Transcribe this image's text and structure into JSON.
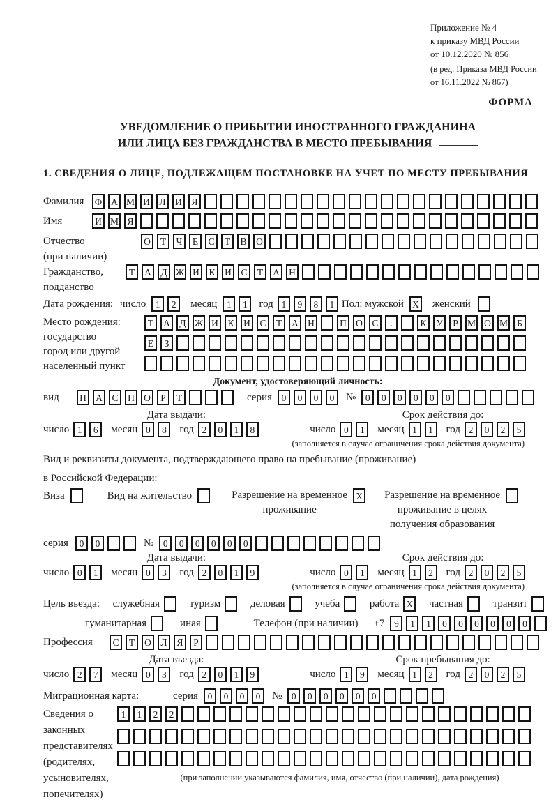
{
  "doc_ref": {
    "lines": [
      "Приложение № 4",
      "к приказу МВД России",
      "от 10.12.2020 № 856"
    ],
    "amendment": [
      "(в ред. Приказа МВД России",
      "от 16.11.2022 № 867)"
    ]
  },
  "form_label": "ФОРМА",
  "title": {
    "line1": "УВЕДОМЛЕНИЕ О ПРИБЫТИИ ИНОСТРАННОГО ГРАЖДАНИНА",
    "line2": "ИЛИ ЛИЦА БЕЗ ГРАЖДАНСТВА В МЕСТО ПРЕБЫВАНИЯ"
  },
  "section1_heading": "1. СВЕДЕНИЯ О ЛИЦЕ, ПОДЛЕЖАЩЕМ ПОСТАНОВКЕ НА УЧЕТ ПО МЕСТУ ПРЕБЫВАНИЯ",
  "date_labels": {
    "day": "число",
    "month": "месяц",
    "year": "год"
  },
  "fields": {
    "surname": {
      "label": "Фамилия",
      "value": "ФАМИЛИЯ",
      "cells": 28
    },
    "given_name": {
      "label": "Имя",
      "value": "ИМЯ",
      "cells": 28
    },
    "patronymic": {
      "label": "Отчество",
      "label_note": "(при наличии)",
      "value": "ОТЧЕСТВО",
      "cells": 25
    },
    "citizenship": {
      "label": "Гражданство,",
      "label2": "подданство",
      "value": "ТАДЖИКИСТАН",
      "cells": 26
    },
    "birth_date": {
      "label": "Дата рождения:",
      "day": {
        "value": "12",
        "cells": 2
      },
      "month": {
        "value": "11",
        "cells": 2
      },
      "year": {
        "value": "1981",
        "cells": 4
      },
      "sex_label": "Пол: мужской",
      "male": {
        "value": "X",
        "cells": 1
      },
      "female_label": "женский",
      "female": {
        "value": "",
        "cells": 1
      }
    },
    "birth_place": {
      "label": "Место рождения:",
      "sub1": "государство",
      "sub2": "город или другой",
      "sub3": "населенный пункт",
      "row1": {
        "value": "ТАДЖИКИСТАН ПОС. КУРМОМБ",
        "cells": 24
      },
      "row2": {
        "value": "ЕЗ",
        "cells": 24
      },
      "row3": {
        "value": "",
        "cells": 24
      }
    }
  },
  "identity_doc": {
    "heading": "Документ, удостоверяющий личность:",
    "type_label": "вид",
    "type": {
      "value": "ПАСПОРТ",
      "cells": 10
    },
    "series_label": "серия",
    "series": {
      "value": "0000",
      "cells": 4
    },
    "number_label": "№",
    "number": {
      "value": "000000",
      "cells": 11
    },
    "issue": {
      "heading": "Дата выдачи:",
      "day": {
        "value": "16",
        "cells": 2
      },
      "month": {
        "value": "08",
        "cells": 2
      },
      "year": {
        "value": "2018",
        "cells": 4
      }
    },
    "valid": {
      "heading": "Срок действия до:",
      "day": {
        "value": "01",
        "cells": 2
      },
      "month": {
        "value": "11",
        "cells": 2
      },
      "year": {
        "value": "2025",
        "cells": 4
      }
    },
    "note": "(заполняется в случае ограничения срока действия документа)"
  },
  "residence_doc": {
    "line1": "Вид и реквизиты документа, подтверждающего право на пребывание (проживание)",
    "line2": "в Российской Федерации:",
    "visa_label": "Виза",
    "visa": {
      "value": "",
      "cells": 1
    },
    "permit_label": "Вид на жительство",
    "permit": {
      "value": "",
      "cells": 1
    },
    "temp_label1": "Разрешение на временное",
    "temp_label2": "проживание",
    "temp": {
      "value": "X",
      "cells": 1
    },
    "edu_label1": "Разрешение на временное",
    "edu_label2": "проживание в целях",
    "edu_label3": "получения образования",
    "edu": {
      "value": "",
      "cells": 1
    },
    "series_label": "серия",
    "series": {
      "value": "00",
      "cells": 4
    },
    "number_label": "№",
    "number": {
      "value": "000000",
      "cells": 14
    },
    "issue": {
      "heading": "Дата выдачи:",
      "day": {
        "value": "01",
        "cells": 2
      },
      "month": {
        "value": "03",
        "cells": 2
      },
      "year": {
        "value": "2019",
        "cells": 4
      }
    },
    "valid": {
      "heading": "Срок действия до:",
      "day": {
        "value": "01",
        "cells": 2
      },
      "month": {
        "value": "12",
        "cells": 2
      },
      "year": {
        "value": "2025",
        "cells": 4
      }
    },
    "note": "(заполняется в случае ограничения срока действия документа)"
  },
  "purpose": {
    "intro": "Цель въезда:",
    "options1": [
      {
        "label": "служебная",
        "value": ""
      },
      {
        "label": "туризм",
        "value": ""
      },
      {
        "label": "деловая",
        "value": ""
      },
      {
        "label": "учеба",
        "value": ""
      },
      {
        "label": "работа",
        "value": "X"
      },
      {
        "label": "частная",
        "value": ""
      },
      {
        "label": "транзит",
        "value": ""
      }
    ],
    "options2": [
      {
        "label": "гуманитарная",
        "value": ""
      },
      {
        "label": "иная",
        "value": ""
      }
    ]
  },
  "phone": {
    "label": "Телефон (при наличии)",
    "prefix": "+7",
    "digits": {
      "value": "911000000",
      "cells": 10
    }
  },
  "profession": {
    "label": "Профессия",
    "field": {
      "value": "СТОЛЯР",
      "cells": 27
    }
  },
  "entry": {
    "issue": {
      "heading": "Дата въезда:",
      "day": {
        "value": "27",
        "cells": 2
      },
      "month": {
        "value": "03",
        "cells": 2
      },
      "year": {
        "value": "2019",
        "cells": 4
      }
    },
    "valid": {
      "heading": "Срок пребывания до:",
      "day": {
        "value": "19",
        "cells": 2
      },
      "month": {
        "value": "12",
        "cells": 2
      },
      "year": {
        "value": "2025",
        "cells": 4
      }
    }
  },
  "migration_card": {
    "label": "Миграционная карта:",
    "series_label": "серия",
    "series": {
      "value": "0000",
      "cells": 4
    },
    "number_label": "№",
    "number": {
      "value": "000000",
      "cells": 10
    }
  },
  "legal_reps": {
    "label_lines": [
      "Сведения о",
      "законных",
      "представителях",
      "(родителях,",
      "усыновителях,",
      "попечителях)"
    ],
    "row1": {
      "value": "1122",
      "cells": 26
    },
    "row2": {
      "value": "",
      "cells": 26
    },
    "row3": {
      "value": "",
      "cells": 26
    },
    "footnote": "(при заполнении указываются фамилия, имя, отчество (при наличии), дата рождения)"
  }
}
